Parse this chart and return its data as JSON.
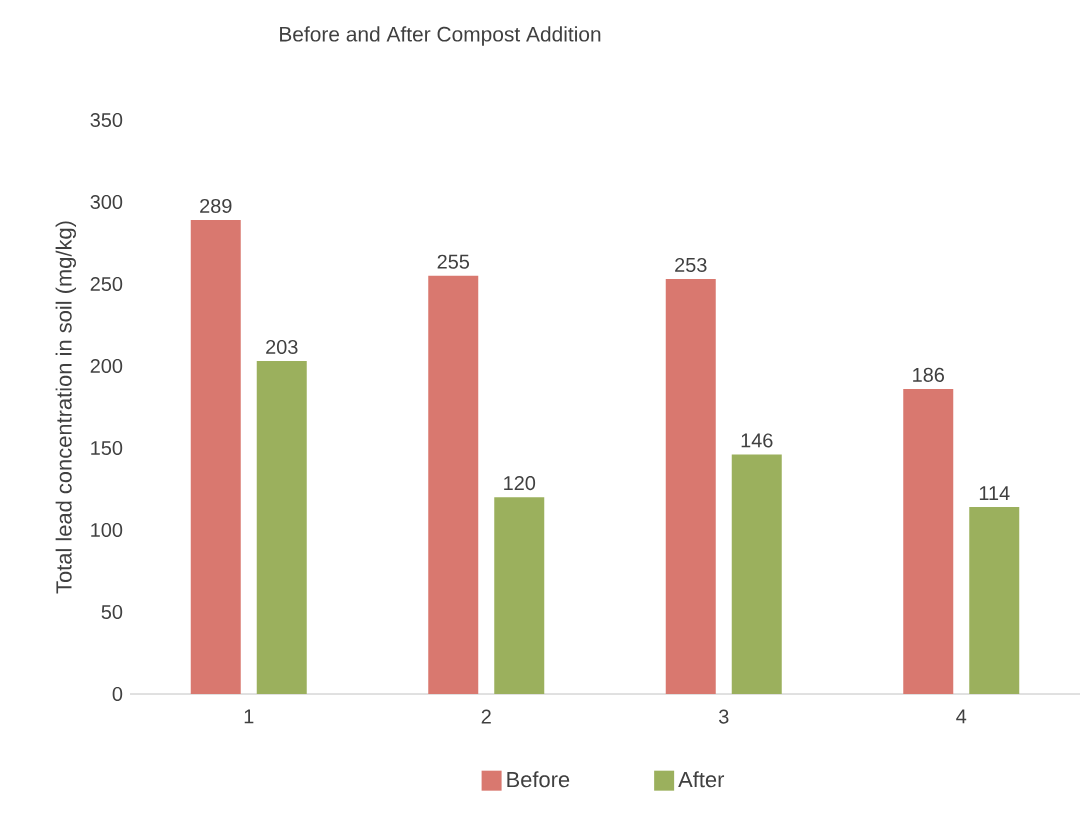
{
  "chart_data": {
    "type": "bar",
    "title": "Before and After Compost Addition",
    "ylabel": "Total lead concentration in soil (mg/kg)",
    "categories": [
      "1",
      "2",
      "3",
      "4"
    ],
    "series": [
      {
        "name": "Before",
        "color": "#d9786f",
        "values": [
          289,
          255,
          253,
          186
        ]
      },
      {
        "name": "After",
        "color": "#9bb05d",
        "values": [
          203,
          120,
          146,
          114
        ]
      }
    ],
    "ylim": [
      0,
      350
    ],
    "yticks": [
      0,
      50,
      100,
      150,
      200,
      250,
      300,
      350
    ],
    "data_labels": true,
    "legend": "bottom"
  }
}
